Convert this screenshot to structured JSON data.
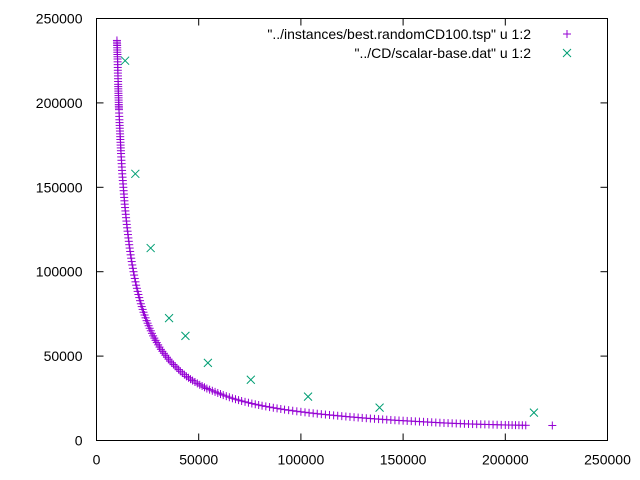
{
  "chart_data": {
    "type": "scatter",
    "title": "",
    "xlabel": "",
    "ylabel": "",
    "xlim": [
      0,
      250000
    ],
    "ylim": [
      0,
      250000
    ],
    "xticks": [
      "0",
      "50000",
      "100000",
      "150000",
      "200000",
      "250000"
    ],
    "yticks": [
      "0",
      "50000",
      "100000",
      "150000",
      "200000",
      "250000"
    ],
    "grid": false,
    "legend_position": "top-right",
    "series": [
      {
        "name": "\"../instances/best.randomCD100.tsp\" u 1:2",
        "marker": "plus",
        "color": "#9400d3",
        "points": [
          [
            10000,
            237000
          ],
          [
            10100,
            234000
          ],
          [
            10200,
            230000
          ],
          [
            10300,
            226000
          ],
          [
            10400,
            221000
          ],
          [
            10500,
            216000
          ],
          [
            10600,
            211000
          ],
          [
            10700,
            207000
          ],
          [
            10800,
            203000
          ],
          [
            10900,
            199000
          ],
          [
            11000,
            196000
          ],
          [
            11200,
            190000
          ],
          [
            11400,
            185000
          ],
          [
            11600,
            180000
          ],
          [
            11800,
            175000
          ],
          [
            12000,
            170000
          ],
          [
            12300,
            164000
          ],
          [
            12600,
            158000
          ],
          [
            13000,
            152000
          ],
          [
            13400,
            146000
          ],
          [
            13800,
            140000
          ],
          [
            14300,
            134000
          ],
          [
            14800,
            128000
          ],
          [
            15400,
            122000
          ],
          [
            16000,
            116000
          ],
          [
            16700,
            110000
          ],
          [
            17500,
            104000
          ],
          [
            18400,
            98000
          ],
          [
            19400,
            92000
          ],
          [
            20500,
            86500
          ],
          [
            21700,
            81000
          ],
          [
            23000,
            76000
          ],
          [
            24500,
            71000
          ],
          [
            26000,
            66500
          ],
          [
            27700,
            62000
          ],
          [
            29500,
            58000
          ],
          [
            31500,
            54000
          ],
          [
            33700,
            50500
          ],
          [
            36000,
            47000
          ],
          [
            38500,
            44000
          ],
          [
            41000,
            41000
          ],
          [
            44000,
            38000
          ],
          [
            47000,
            35500
          ],
          [
            50500,
            33000
          ],
          [
            54000,
            30800
          ],
          [
            58000,
            28800
          ],
          [
            62000,
            26900
          ],
          [
            66500,
            25000
          ],
          [
            71000,
            23400
          ],
          [
            76000,
            21900
          ],
          [
            81000,
            20600
          ],
          [
            86500,
            19400
          ],
          [
            92000,
            18300
          ],
          [
            98000,
            17300
          ],
          [
            104000,
            16400
          ],
          [
            110000,
            15600
          ],
          [
            116000,
            14900
          ],
          [
            122000,
            14200
          ],
          [
            128000,
            13600
          ],
          [
            134000,
            13000
          ],
          [
            140000,
            12500
          ],
          [
            146000,
            12000
          ],
          [
            152000,
            11600
          ],
          [
            158000,
            11200
          ],
          [
            164000,
            10800
          ],
          [
            170000,
            10400
          ],
          [
            176000,
            10100
          ],
          [
            182000,
            9800
          ],
          [
            188000,
            9600
          ],
          [
            194000,
            9400
          ],
          [
            200000,
            9200
          ],
          [
            205000,
            9100
          ],
          [
            210000,
            9000
          ],
          [
            223000,
            8900
          ]
        ]
      },
      {
        "name": "\"../CD/scalar-base.dat\" u 1:2",
        "marker": "cross",
        "color": "#009e73",
        "points": [
          [
            14000,
            225000
          ],
          [
            19000,
            158000
          ],
          [
            26500,
            114000
          ],
          [
            35500,
            72500
          ],
          [
            43500,
            62000
          ],
          [
            54500,
            46000
          ],
          [
            75500,
            36000
          ],
          [
            103500,
            26000
          ],
          [
            138500,
            19500
          ],
          [
            214000,
            16500
          ]
        ]
      }
    ]
  }
}
